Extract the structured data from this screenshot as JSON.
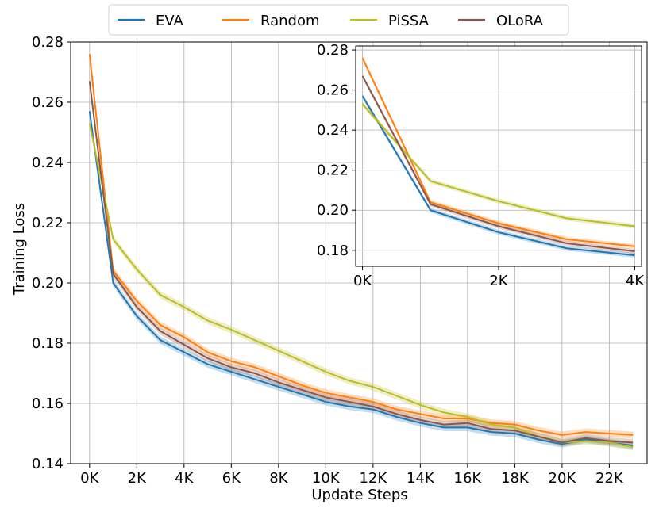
{
  "chart_data": [
    {
      "id": "main",
      "type": "line",
      "title": "",
      "xlabel": "Update Steps",
      "ylabel": "Training Loss",
      "xlim": [
        -0.8,
        23.6
      ],
      "ylim": [
        0.14,
        0.28
      ],
      "xticks": [
        0,
        2,
        4,
        6,
        8,
        10,
        12,
        14,
        16,
        18,
        20,
        22
      ],
      "xtick_labels": [
        "0K",
        "2K",
        "4K",
        "6K",
        "8K",
        "10K",
        "12K",
        "14K",
        "16K",
        "18K",
        "20K",
        "22K"
      ],
      "yticks": [
        0.14,
        0.16,
        0.18,
        0.2,
        0.22,
        0.24,
        0.26,
        0.28
      ],
      "ytick_labels": [
        "0.14",
        "0.16",
        "0.18",
        "0.20",
        "0.22",
        "0.24",
        "0.26",
        "0.28"
      ],
      "grid": true,
      "legend_position": "top-center, outside",
      "x": [
        0,
        1,
        2,
        3,
        4,
        5,
        6,
        7,
        8,
        9,
        10,
        11,
        12,
        13,
        14,
        15,
        16,
        17,
        18,
        19,
        20,
        21,
        22,
        23
      ],
      "series": [
        {
          "name": "EVA",
          "color": "#1f77b4",
          "band": 0.0012,
          "values": [
            0.257,
            0.2,
            0.189,
            0.181,
            0.177,
            0.173,
            0.1705,
            0.168,
            0.1655,
            0.163,
            0.1605,
            0.159,
            0.158,
            0.1555,
            0.1535,
            0.152,
            0.152,
            0.1505,
            0.15,
            0.148,
            0.1465,
            0.148,
            0.147,
            0.146
          ]
        },
        {
          "name": "Random",
          "color": "#ff7f0e",
          "band": 0.0012,
          "values": [
            0.276,
            0.204,
            0.194,
            0.186,
            0.182,
            0.177,
            0.174,
            0.172,
            0.169,
            0.166,
            0.1635,
            0.162,
            0.1605,
            0.158,
            0.1565,
            0.155,
            0.155,
            0.1535,
            0.153,
            0.151,
            0.1495,
            0.1505,
            0.15,
            0.1495
          ]
        },
        {
          "name": "PiSSA",
          "color": "#bcbd22",
          "band": 0.0012,
          "values": [
            0.253,
            0.2145,
            0.2045,
            0.196,
            0.192,
            0.1875,
            0.1845,
            0.181,
            0.1775,
            0.174,
            0.1705,
            0.1675,
            0.1655,
            0.1625,
            0.1595,
            0.157,
            0.1555,
            0.153,
            0.152,
            0.149,
            0.147,
            0.1475,
            0.147,
            0.1455
          ]
        },
        {
          "name": "OLoRA",
          "color": "#8c564b",
          "band": 0.0012,
          "values": [
            0.267,
            0.203,
            0.192,
            0.184,
            0.1795,
            0.175,
            0.172,
            0.17,
            0.167,
            0.1645,
            0.162,
            0.1605,
            0.159,
            0.1565,
            0.1545,
            0.153,
            0.1535,
            0.1515,
            0.151,
            0.149,
            0.147,
            0.1485,
            0.1475,
            0.147
          ]
        }
      ]
    },
    {
      "id": "inset",
      "type": "line",
      "title": "",
      "xlabel": "",
      "ylabel": "",
      "xlim": [
        -0.1,
        4.1
      ],
      "ylim": [
        0.172,
        0.282
      ],
      "xticks": [
        0,
        2,
        4
      ],
      "xtick_labels": [
        "0K",
        "2K",
        "4K"
      ],
      "yticks": [
        0.18,
        0.2,
        0.22,
        0.24,
        0.26,
        0.28
      ],
      "ytick_labels": [
        "0.18",
        "0.20",
        "0.22",
        "0.24",
        "0.26",
        "0.28"
      ],
      "grid": true,
      "x": [
        0,
        1,
        2,
        3,
        4
      ],
      "series": [
        {
          "name": "EVA",
          "color": "#1f77b4",
          "band": 0.0012,
          "values": [
            0.257,
            0.2,
            0.189,
            0.181,
            0.1775
          ]
        },
        {
          "name": "Random",
          "color": "#ff7f0e",
          "band": 0.0012,
          "values": [
            0.276,
            0.204,
            0.1935,
            0.1855,
            0.182
          ]
        },
        {
          "name": "PiSSA",
          "color": "#bcbd22",
          "band": 0.0012,
          "values": [
            0.253,
            0.2145,
            0.2045,
            0.196,
            0.192
          ]
        },
        {
          "name": "OLoRA",
          "color": "#8c564b",
          "band": 0.0012,
          "values": [
            0.267,
            0.203,
            0.192,
            0.1835,
            0.1795
          ]
        }
      ]
    }
  ],
  "legend": {
    "items": [
      {
        "label": "EVA",
        "color": "#1f77b4"
      },
      {
        "label": "Random",
        "color": "#ff7f0e"
      },
      {
        "label": "PiSSA",
        "color": "#bcbd22"
      },
      {
        "label": "OLoRA",
        "color": "#8c564b"
      }
    ]
  }
}
